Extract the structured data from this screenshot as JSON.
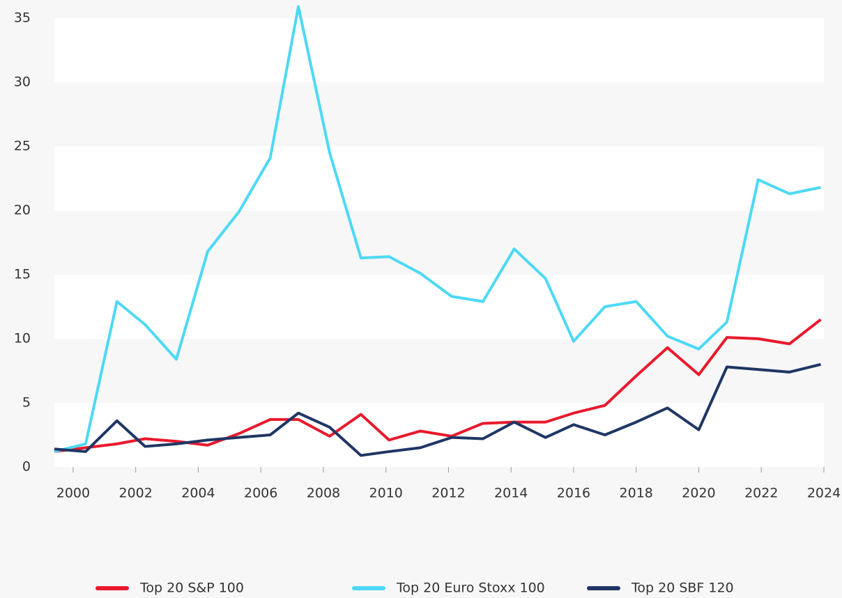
{
  "chart_data": {
    "type": "line",
    "x": [
      1999.4,
      2000.4,
      2001.4,
      2002.3,
      2003.3,
      2004.3,
      2005.3,
      2006.3,
      2007.2,
      2008.2,
      2009.2,
      2010.1,
      2011.1,
      2012.1,
      2013.1,
      2014.1,
      2015.1,
      2016.0,
      2017.0,
      2018.0,
      2019.0,
      2020.0,
      2020.9,
      2021.9,
      2022.9,
      2023.9
    ],
    "series": [
      {
        "name": "Top 20 S&P 100",
        "color": "#e8192c",
        "values": [
          1.2,
          1.5,
          1.8,
          2.2,
          2.0,
          1.7,
          2.6,
          3.7,
          3.7,
          2.4,
          4.1,
          2.1,
          2.8,
          2.4,
          3.4,
          3.5,
          3.5,
          4.2,
          4.8,
          7.1,
          9.3,
          7.2,
          10.1,
          10.0,
          9.6,
          11.5
        ]
      },
      {
        "name": "Top 20 Euro Stoxx 100",
        "color": "#4dd9f5",
        "values": [
          1.2,
          1.8,
          12.9,
          11.1,
          8.4,
          16.8,
          19.9,
          24.1,
          35.9,
          24.5,
          16.3,
          16.4,
          15.1,
          13.3,
          12.9,
          17.0,
          14.7,
          9.8,
          12.5,
          12.9,
          10.2,
          9.2,
          11.3,
          22.4,
          21.3,
          21.8
        ]
      },
      {
        "name": "Top 20 SBF 120",
        "color": "#1f3664",
        "values": [
          1.4,
          1.2,
          3.6,
          1.6,
          1.8,
          2.1,
          2.3,
          2.5,
          4.2,
          3.1,
          0.9,
          1.2,
          1.5,
          2.3,
          2.2,
          3.5,
          2.3,
          3.3,
          2.5,
          3.5,
          4.6,
          2.9,
          7.8,
          7.6,
          7.4,
          8.0
        ]
      }
    ],
    "xlim": [
      1999.4,
      2024.0
    ],
    "xticks": [
      2000,
      2002,
      2004,
      2006,
      2008,
      2010,
      2012,
      2014,
      2016,
      2018,
      2020,
      2022,
      2024
    ],
    "ylim": [
      0,
      36
    ],
    "yticks": [
      0,
      5,
      10,
      15,
      20,
      25,
      30,
      35
    ],
    "grid": true,
    "legend": "bottom"
  }
}
